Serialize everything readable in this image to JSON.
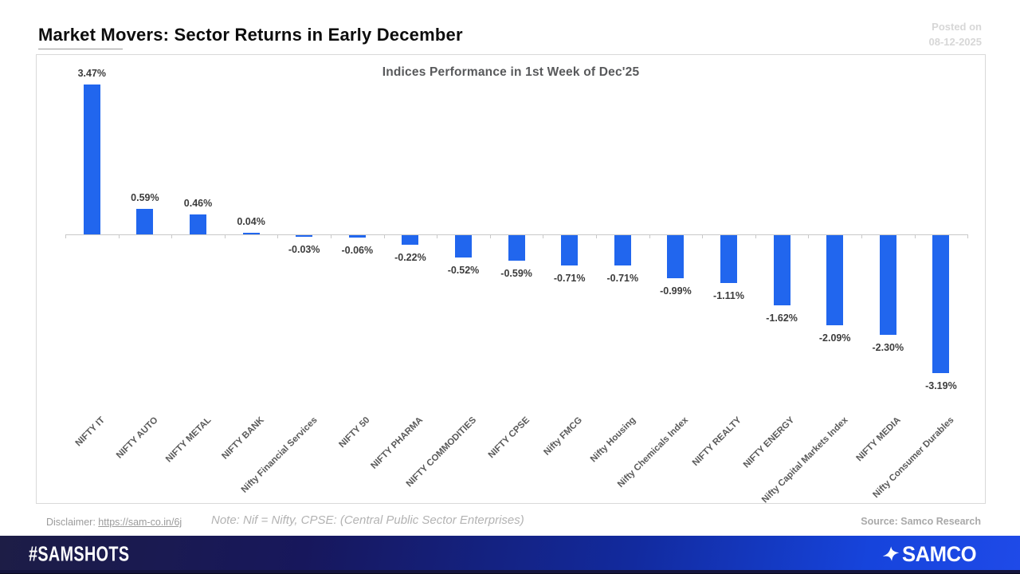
{
  "header": {
    "title": "Market Movers: Sector Returns in Early December",
    "posted_on_line1": "Posted on",
    "posted_on_line2": "08-12-2025"
  },
  "chart_data": {
    "type": "bar",
    "title": "Indices Performance in 1st Week of Dec'25",
    "categories": [
      "NIFTY IT",
      "NIFTY AUTO",
      "NIFTY METAL",
      "NIFTY BANK",
      "Nifty Financial Services",
      "NIFTY 50",
      "NIFTY PHARMA",
      "NIFTY COMMODITIES",
      "NIFTY CPSE",
      "Nifty FMCG",
      "Nifty Housing",
      "Nifty Chemicals Index",
      "NIFTY REALTY",
      "NIFTY ENERGY",
      "Nifty Capital Markets Index",
      "NIFTY MEDIA",
      "Nifty Consumer Durables"
    ],
    "values": [
      3.47,
      0.59,
      0.46,
      0.04,
      -0.03,
      -0.06,
      -0.22,
      -0.52,
      -0.59,
      -0.71,
      -0.71,
      -0.99,
      -1.11,
      -1.62,
      -2.09,
      -2.3,
      -3.19
    ],
    "value_labels": [
      "3.47%",
      "0.59%",
      "0.46%",
      "0.04%",
      "-0.03%",
      "-0.06%",
      "-0.22%",
      "-0.52%",
      "-0.59%",
      "-0.71%",
      "-0.71%",
      "-0.99%",
      "-1.11%",
      "-1.62%",
      "-2.09%",
      "-2.30%",
      "-3.19%"
    ],
    "bar_color": "#2166ee",
    "axis_color": "#c9c9c9",
    "xlabel": "",
    "ylabel": "",
    "ylim": [
      -3.5,
      3.6
    ],
    "grid": false,
    "legend": null,
    "unit": "%"
  },
  "footer": {
    "disclaimer_label": "Disclaimer:",
    "disclaimer_link": "https://sam-co.in/6j",
    "note": "Note: Nif = Nifty, CPSE: (Central Public Sector Enterprises)",
    "source": "Source: Samco Research"
  },
  "banner": {
    "hashtag": "#SAMSHOTS",
    "brand": "SAMCO",
    "logo_icon": "samco-pinwheel-icon",
    "bg_left_color": "#1d1d46",
    "bg_right_color": "#1f4ae8"
  }
}
